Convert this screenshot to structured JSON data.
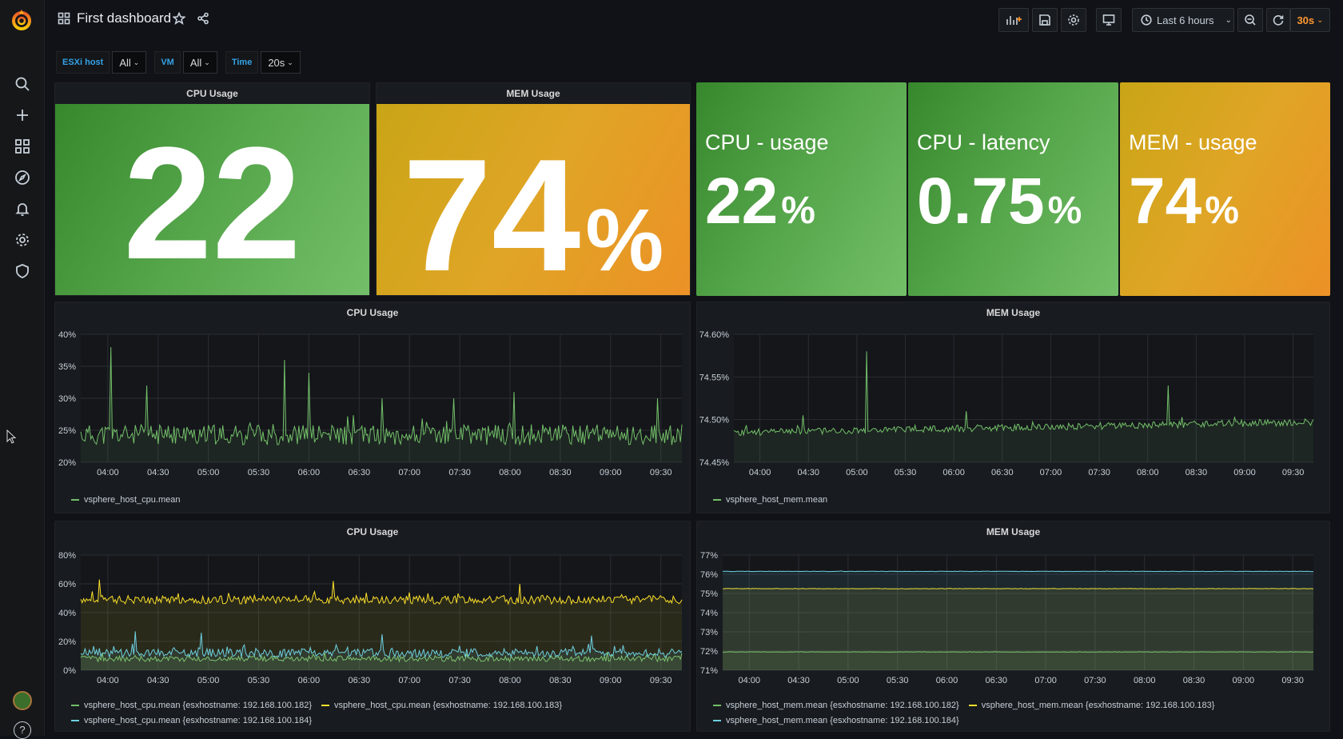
{
  "dashboard": {
    "title": "First dashboard"
  },
  "toolbar": {
    "time_range_label": "Last 6 hours",
    "refresh_interval": "30s"
  },
  "variables": [
    {
      "label": "ESXi host",
      "value": "All"
    },
    {
      "label": "VM",
      "value": "All"
    },
    {
      "label": "Time",
      "value": "20s"
    }
  ],
  "stat_panels": {
    "cpu_usage": {
      "title": "CPU Usage",
      "value": "22",
      "unit": ""
    },
    "mem_usage": {
      "title": "MEM Usage",
      "value": "74",
      "unit": "%"
    },
    "cpu_usage_small": {
      "name": "CPU - usage",
      "value": "22",
      "unit": "%"
    },
    "cpu_latency": {
      "name": "CPU - latency",
      "value": "0.75",
      "unit": "%"
    },
    "mem_usage_small": {
      "name": "MEM - usage",
      "value": "74",
      "unit": "%"
    }
  },
  "colors": {
    "green": "#73bf69",
    "yellow": "#fade2a",
    "orange": "#ff9830",
    "blue": "#5794f2",
    "cyan": "#6ed0e0",
    "accent_label": "#33a2e5"
  },
  "chart_data": [
    {
      "id": "cpu1",
      "type": "line",
      "title": "CPU Usage",
      "x": [
        "04:00",
        "04:30",
        "05:00",
        "05:30",
        "06:00",
        "06:30",
        "07:00",
        "07:30",
        "08:00",
        "08:30",
        "09:00",
        "09:30"
      ],
      "ylim": [
        20,
        40
      ],
      "ytick_labels": [
        "20%",
        "25%",
        "30%",
        "35%",
        "40%"
      ],
      "series": [
        {
          "name": "vsphere_host_cpu.mean",
          "color": "#73bf69",
          "base": 24.3,
          "noise": 1.6,
          "spikes": [
            [
              0.05,
              38
            ],
            [
              0.34,
              36
            ],
            [
              0.38,
              34
            ],
            [
              0.11,
              32
            ],
            [
              0.5,
              30
            ],
            [
              0.62,
              30
            ],
            [
              0.72,
              31
            ],
            [
              0.96,
              30
            ]
          ]
        }
      ]
    },
    {
      "id": "mem1",
      "type": "line",
      "title": "MEM Usage",
      "x": [
        "04:00",
        "04:30",
        "05:00",
        "05:30",
        "06:00",
        "06:30",
        "07:00",
        "07:30",
        "08:00",
        "08:30",
        "09:00",
        "09:30"
      ],
      "ylim": [
        74.45,
        74.6
      ],
      "ytick_labels": [
        "74.45%",
        "74.50%",
        "74.55%",
        "74.60%"
      ],
      "series": [
        {
          "name": "vsphere_host_mem.mean",
          "color": "#73bf69",
          "base": 74.485,
          "noise": 0.004,
          "trend": 0.012,
          "spikes": [
            [
              0.23,
              74.58
            ],
            [
              0.75,
              74.54
            ],
            [
              0.4,
              74.51
            ],
            [
              0.12,
              74.505
            ]
          ]
        }
      ]
    },
    {
      "id": "cpu2",
      "type": "line",
      "title": "CPU Usage",
      "x": [
        "04:00",
        "04:30",
        "05:00",
        "05:30",
        "06:00",
        "06:30",
        "07:00",
        "07:30",
        "08:00",
        "08:30",
        "09:00",
        "09:30"
      ],
      "ylim": [
        0,
        80
      ],
      "ytick_labels": [
        "0%",
        "20%",
        "40%",
        "60%",
        "80%"
      ],
      "series": [
        {
          "name": "vsphere_host_cpu.mean {esxhostname: 192.168.100.182}",
          "color": "#73bf69",
          "base": 8,
          "noise": 2
        },
        {
          "name": "vsphere_host_cpu.mean {esxhostname: 192.168.100.183}",
          "color": "#fade2a",
          "base": 49,
          "noise": 3,
          "spikes": [
            [
              0.03,
              63
            ],
            [
              0.42,
              62
            ],
            [
              0.73,
              60
            ]
          ]
        },
        {
          "name": "vsphere_host_cpu.mean {esxhostname: 192.168.100.184}",
          "color": "#6ed0e0",
          "base": 12,
          "noise": 3,
          "spikes": [
            [
              0.09,
              27
            ],
            [
              0.2,
              26
            ],
            [
              0.5,
              25
            ],
            [
              0.85,
              24
            ]
          ]
        }
      ]
    },
    {
      "id": "mem2",
      "type": "line",
      "title": "MEM Usage",
      "x": [
        "04:00",
        "04:30",
        "05:00",
        "05:30",
        "06:00",
        "06:30",
        "07:00",
        "07:30",
        "08:00",
        "08:30",
        "09:00",
        "09:30"
      ],
      "ylim": [
        71,
        77
      ],
      "ytick_labels": [
        "71%",
        "72%",
        "73%",
        "74%",
        "75%",
        "76%",
        "77%"
      ],
      "series": [
        {
          "name": "vsphere_host_mem.mean {esxhostname: 192.168.100.182}",
          "color": "#73bf69",
          "base": 71.95,
          "noise": 0.01
        },
        {
          "name": "vsphere_host_mem.mean {esxhostname: 192.168.100.183}",
          "color": "#fade2a",
          "base": 75.25,
          "noise": 0.01
        },
        {
          "name": "vsphere_host_mem.mean {esxhostname: 192.168.100.184}",
          "color": "#6ed0e0",
          "base": 76.15,
          "noise": 0.01
        }
      ]
    }
  ]
}
